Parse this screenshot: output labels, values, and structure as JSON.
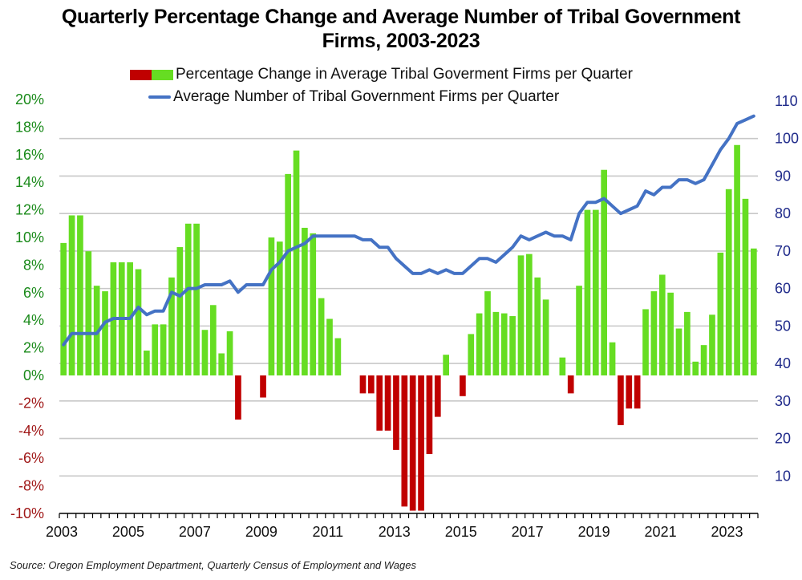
{
  "title_line1": "Quarterly Percentage Change and Average Number of Tribal Government",
  "title_line2": "Firms, 2003-2023",
  "legend": {
    "bars_label": "Percentage Change in Average Tribal Goverment Firms per Quarter",
    "line_label": "Average Number of Tribal Government Firms per Quarter"
  },
  "source": "Source: Oregon Employment Department, Quarterly Census of Employment and Wages",
  "colors": {
    "positive_bar": "#66dd22",
    "negative_bar": "#c00000",
    "line": "#4472c4",
    "left_axis_positive": "#1a8a1a",
    "left_axis_negative": "#a01818",
    "right_axis": "#1f2a8a",
    "grid": "#c8c8c8"
  },
  "chart_data": {
    "type": "bar",
    "title": "Quarterly Percentage Change and Average Number of Tribal Government Firms, 2003-2023",
    "xlabel": "",
    "ylabel": "",
    "x_tick_labels": [
      "2003",
      "2005",
      "2007",
      "2009",
      "2011",
      "2013",
      "2015",
      "2017",
      "2019",
      "2021",
      "2023"
    ],
    "left_axis": {
      "ylim": [
        -10,
        20
      ],
      "tick_values": [
        20,
        18,
        16,
        14,
        12,
        10,
        8,
        6,
        4,
        2,
        0,
        -2,
        -4,
        -6,
        -8,
        -10
      ],
      "tick_labels": [
        "20%",
        "18%",
        "16%",
        "14%",
        "12%",
        "10%",
        "8%",
        "6%",
        "4%",
        "2%",
        "0%",
        "-2%",
        "-4%",
        "-6%",
        "-8%",
        "-10%"
      ]
    },
    "right_axis": {
      "ylim": [
        0,
        110
      ],
      "tick_values": [
        110,
        100,
        90,
        80,
        70,
        60,
        50,
        40,
        30,
        20,
        10
      ],
      "tick_labels": [
        "110",
        "100",
        "90",
        "80",
        "70",
        "60",
        "50",
        "40",
        "30",
        "20",
        "10"
      ]
    },
    "grid": true,
    "legend_position": "top",
    "categories": [
      "2003Q1",
      "2003Q2",
      "2003Q3",
      "2003Q4",
      "2004Q1",
      "2004Q2",
      "2004Q3",
      "2004Q4",
      "2005Q1",
      "2005Q2",
      "2005Q3",
      "2005Q4",
      "2006Q1",
      "2006Q2",
      "2006Q3",
      "2006Q4",
      "2007Q1",
      "2007Q2",
      "2007Q3",
      "2007Q4",
      "2008Q1",
      "2008Q2",
      "2008Q3",
      "2008Q4",
      "2009Q1",
      "2009Q2",
      "2009Q3",
      "2009Q4",
      "2010Q1",
      "2010Q2",
      "2010Q3",
      "2010Q4",
      "2011Q1",
      "2011Q2",
      "2011Q3",
      "2011Q4",
      "2012Q1",
      "2012Q2",
      "2012Q3",
      "2012Q4",
      "2013Q1",
      "2013Q2",
      "2013Q3",
      "2013Q4",
      "2014Q1",
      "2014Q2",
      "2014Q3",
      "2014Q4",
      "2015Q1",
      "2015Q2",
      "2015Q3",
      "2015Q4",
      "2016Q1",
      "2016Q2",
      "2016Q3",
      "2016Q4",
      "2017Q1",
      "2017Q2",
      "2017Q3",
      "2017Q4",
      "2018Q1",
      "2018Q2",
      "2018Q3",
      "2018Q4",
      "2019Q1",
      "2019Q2",
      "2019Q3",
      "2019Q4",
      "2020Q1",
      "2020Q2",
      "2020Q3",
      "2020Q4",
      "2021Q1",
      "2021Q2",
      "2021Q3",
      "2021Q4",
      "2022Q1",
      "2022Q2",
      "2022Q3",
      "2022Q4",
      "2023Q1",
      "2023Q2",
      "2023Q3",
      "2023Q4"
    ],
    "series": [
      {
        "name": "Percentage Change in Average Tribal Goverment Firms per Quarter",
        "type": "bar",
        "axis": "left",
        "unit": "%",
        "values": [
          9.6,
          11.6,
          11.6,
          9.0,
          6.5,
          6.1,
          8.2,
          8.2,
          8.2,
          7.7,
          1.8,
          3.7,
          3.7,
          7.1,
          9.3,
          11.0,
          11.0,
          3.3,
          5.1,
          1.6,
          3.2,
          -3.2,
          0,
          0,
          -1.6,
          10.0,
          9.7,
          14.6,
          16.3,
          10.7,
          10.3,
          5.6,
          4.1,
          2.7,
          0,
          0,
          -1.3,
          -1.3,
          -4.0,
          -4.0,
          -5.4,
          -9.5,
          -9.8,
          -9.8,
          -5.7,
          -3.0,
          1.5,
          0,
          -1.5,
          3.0,
          4.5,
          6.1,
          4.6,
          4.5,
          4.3,
          8.7,
          8.8,
          7.1,
          5.5,
          0,
          1.3,
          -1.3,
          6.5,
          12.0,
          12.0,
          14.9,
          2.4,
          -3.6,
          -2.4,
          -2.4,
          4.8,
          6.1,
          7.3,
          6.0,
          3.4,
          4.6,
          1.0,
          2.2,
          4.4,
          8.9,
          13.5,
          16.7,
          12.8,
          9.2
        ]
      },
      {
        "name": "Average Number of Tribal Government Firms per Quarter",
        "type": "line",
        "axis": "right",
        "values": [
          45,
          48,
          48,
          48,
          48,
          51,
          52,
          52,
          52,
          55,
          53,
          54,
          54,
          59,
          58,
          60,
          60,
          61,
          61,
          61,
          62,
          59,
          61,
          61,
          61,
          65,
          67,
          70,
          71,
          72,
          74,
          74,
          74,
          74,
          74,
          74,
          73,
          73,
          71,
          71,
          68,
          66,
          64,
          64,
          65,
          64,
          65,
          64,
          64,
          66,
          68,
          68,
          67,
          69,
          71,
          74,
          73,
          74,
          75,
          74,
          74,
          73,
          80,
          83,
          83,
          84,
          82,
          80,
          81,
          82,
          86,
          85,
          87,
          87,
          89,
          89,
          88,
          89,
          93,
          97,
          100,
          104,
          105,
          106
        ]
      }
    ]
  }
}
